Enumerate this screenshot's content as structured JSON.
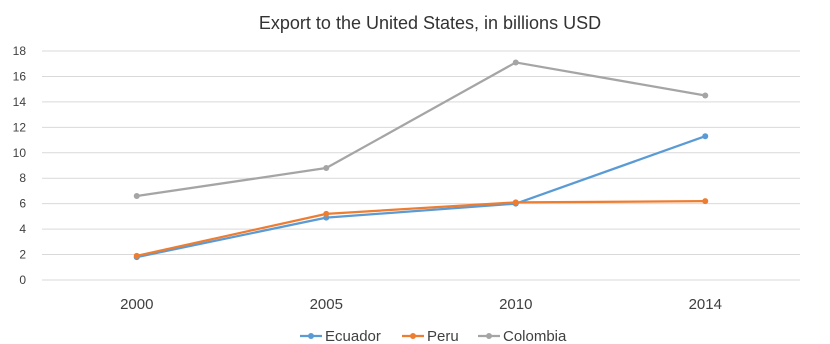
{
  "chart_data": {
    "type": "line",
    "title": "Export to the United States, in billions USD",
    "xlabel": "",
    "ylabel": "",
    "categories": [
      "2000",
      "2005",
      "2010",
      "2014"
    ],
    "ylim": [
      0,
      18
    ],
    "yticks": [
      "0",
      "2",
      "4",
      "6",
      "8",
      "10",
      "12",
      "14",
      "16",
      "18"
    ],
    "grid": true,
    "legend": "bottom",
    "series": [
      {
        "name": "Ecuador",
        "color": "#5b9bd5",
        "values": [
          1.8,
          4.9,
          6.0,
          11.3
        ]
      },
      {
        "name": "Peru",
        "color": "#ed7d31",
        "values": [
          1.9,
          5.2,
          6.1,
          6.2
        ]
      },
      {
        "name": "Colombia",
        "color": "#a5a5a5",
        "values": [
          6.6,
          8.8,
          17.1,
          14.5
        ]
      }
    ]
  }
}
